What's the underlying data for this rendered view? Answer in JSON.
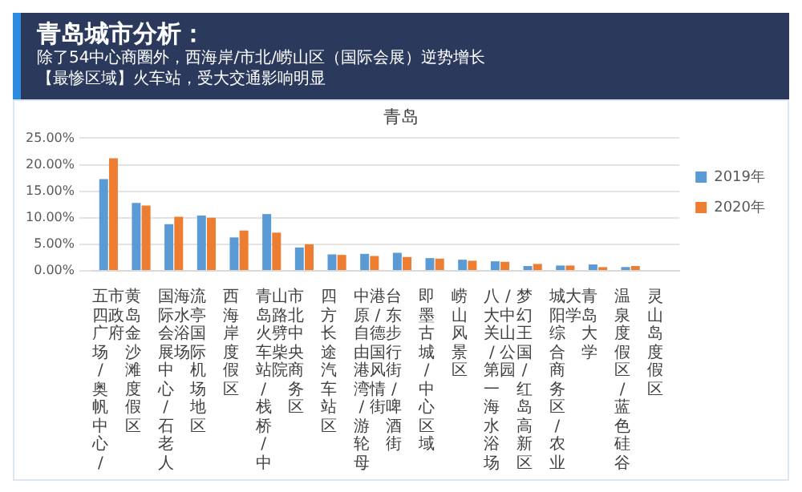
{
  "chart_data": {
    "type": "bar",
    "title": "青岛",
    "annotations": [
      "青岛城市分析：",
      "除了54中心商圈外，西海岸/市北/崂山区（国际会展）逆势增长",
      "【最惨区域】火车站，受大交通影响明显"
    ],
    "categories": [
      "五四广场/奥帆中心/市政府",
      "黄岛金沙滩度假区",
      "国际会展中心/石老人海水浴场",
      "流亭国际机场地区",
      "西海岸度假区",
      "青岛火车站/栈桥/中山路劈柴院",
      "市北中央商务区",
      "四方长途汽车站区",
      "中原自由港湾/游轮母港/德国风情街",
      "台东步行街/啤酒街",
      "即墨古城/中心区域",
      "崂山风景区",
      "八大关/第一海水浴场/中山公园",
      "梦幻王国/红岛高新区",
      "城阳综合商务区/农业大学",
      "青岛大学",
      "温泉度假区/蓝色硅谷",
      "灵山岛度假区"
    ],
    "series": [
      {
        "name": "2019年",
        "color": "#5b9bd5",
        "values": [
          17.3,
          12.8,
          8.8,
          10.4,
          6.3,
          10.7,
          4.4,
          3.1,
          3.2,
          3.4,
          2.4,
          2.1,
          1.8,
          0.9,
          1.0,
          1.2,
          0.7,
          0
        ]
      },
      {
        "name": "2020年",
        "color": "#ed7d31",
        "values": [
          21.2,
          12.3,
          10.2,
          10.0,
          7.6,
          7.2,
          5.0,
          3.0,
          2.8,
          2.6,
          2.3,
          1.9,
          1.7,
          1.3,
          1.0,
          0.7,
          0.9,
          0
        ]
      }
    ],
    "ylim": [
      0,
      25
    ],
    "yticks": [
      {
        "value": 0,
        "label": "0.00%"
      },
      {
        "value": 5,
        "label": "5.00%"
      },
      {
        "value": 10,
        "label": "10.00%"
      },
      {
        "value": 15,
        "label": "15.00%"
      },
      {
        "value": 20,
        "label": "20.00%"
      },
      {
        "value": 25,
        "label": "25.00%"
      }
    ],
    "grid": "y",
    "legend": "right"
  }
}
